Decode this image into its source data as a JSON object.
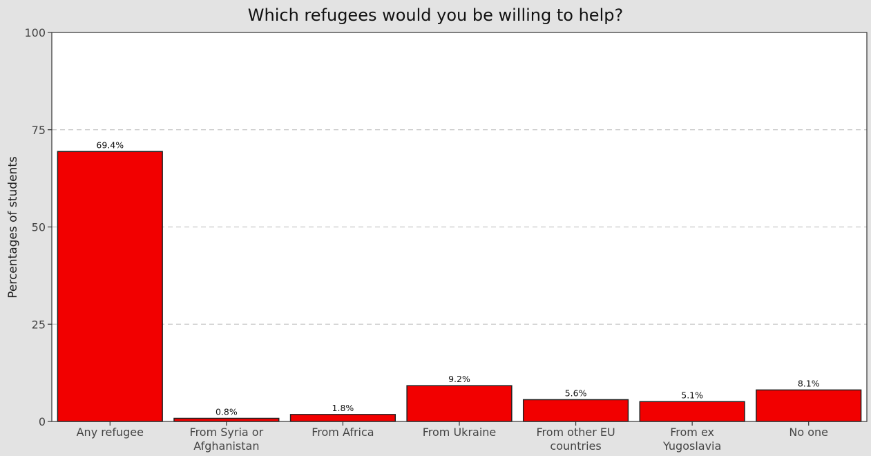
{
  "chart_data": {
    "type": "bar",
    "title": "Which refugees would you be willing to help?",
    "ylabel": "Percentages of students",
    "xlabel": "",
    "ylim": [
      0,
      100
    ],
    "yticks": [
      0,
      25,
      50,
      75,
      100
    ],
    "grid": "horizontal dashed",
    "categories": [
      [
        "Any refugee"
      ],
      [
        "From Syria or",
        "Afghanistan"
      ],
      [
        "From Africa"
      ],
      [
        "From Ukraine"
      ],
      [
        "From other EU",
        "countries"
      ],
      [
        "From ex",
        "Yugoslavia"
      ],
      [
        "No one"
      ]
    ],
    "values": [
      69.4,
      0.8,
      1.8,
      9.2,
      5.6,
      5.1,
      8.1
    ],
    "data_labels": [
      "69.4%",
      "0.8%",
      "1.8%",
      "9.2%",
      "5.6%",
      "5.1%",
      "8.1%"
    ],
    "colors": {
      "bar": "#f20000",
      "bar_edge": "#222222",
      "plot_bg": "#ffffff",
      "outer_bg": "#e3e3e3",
      "grid": "#c8c8c8"
    }
  }
}
